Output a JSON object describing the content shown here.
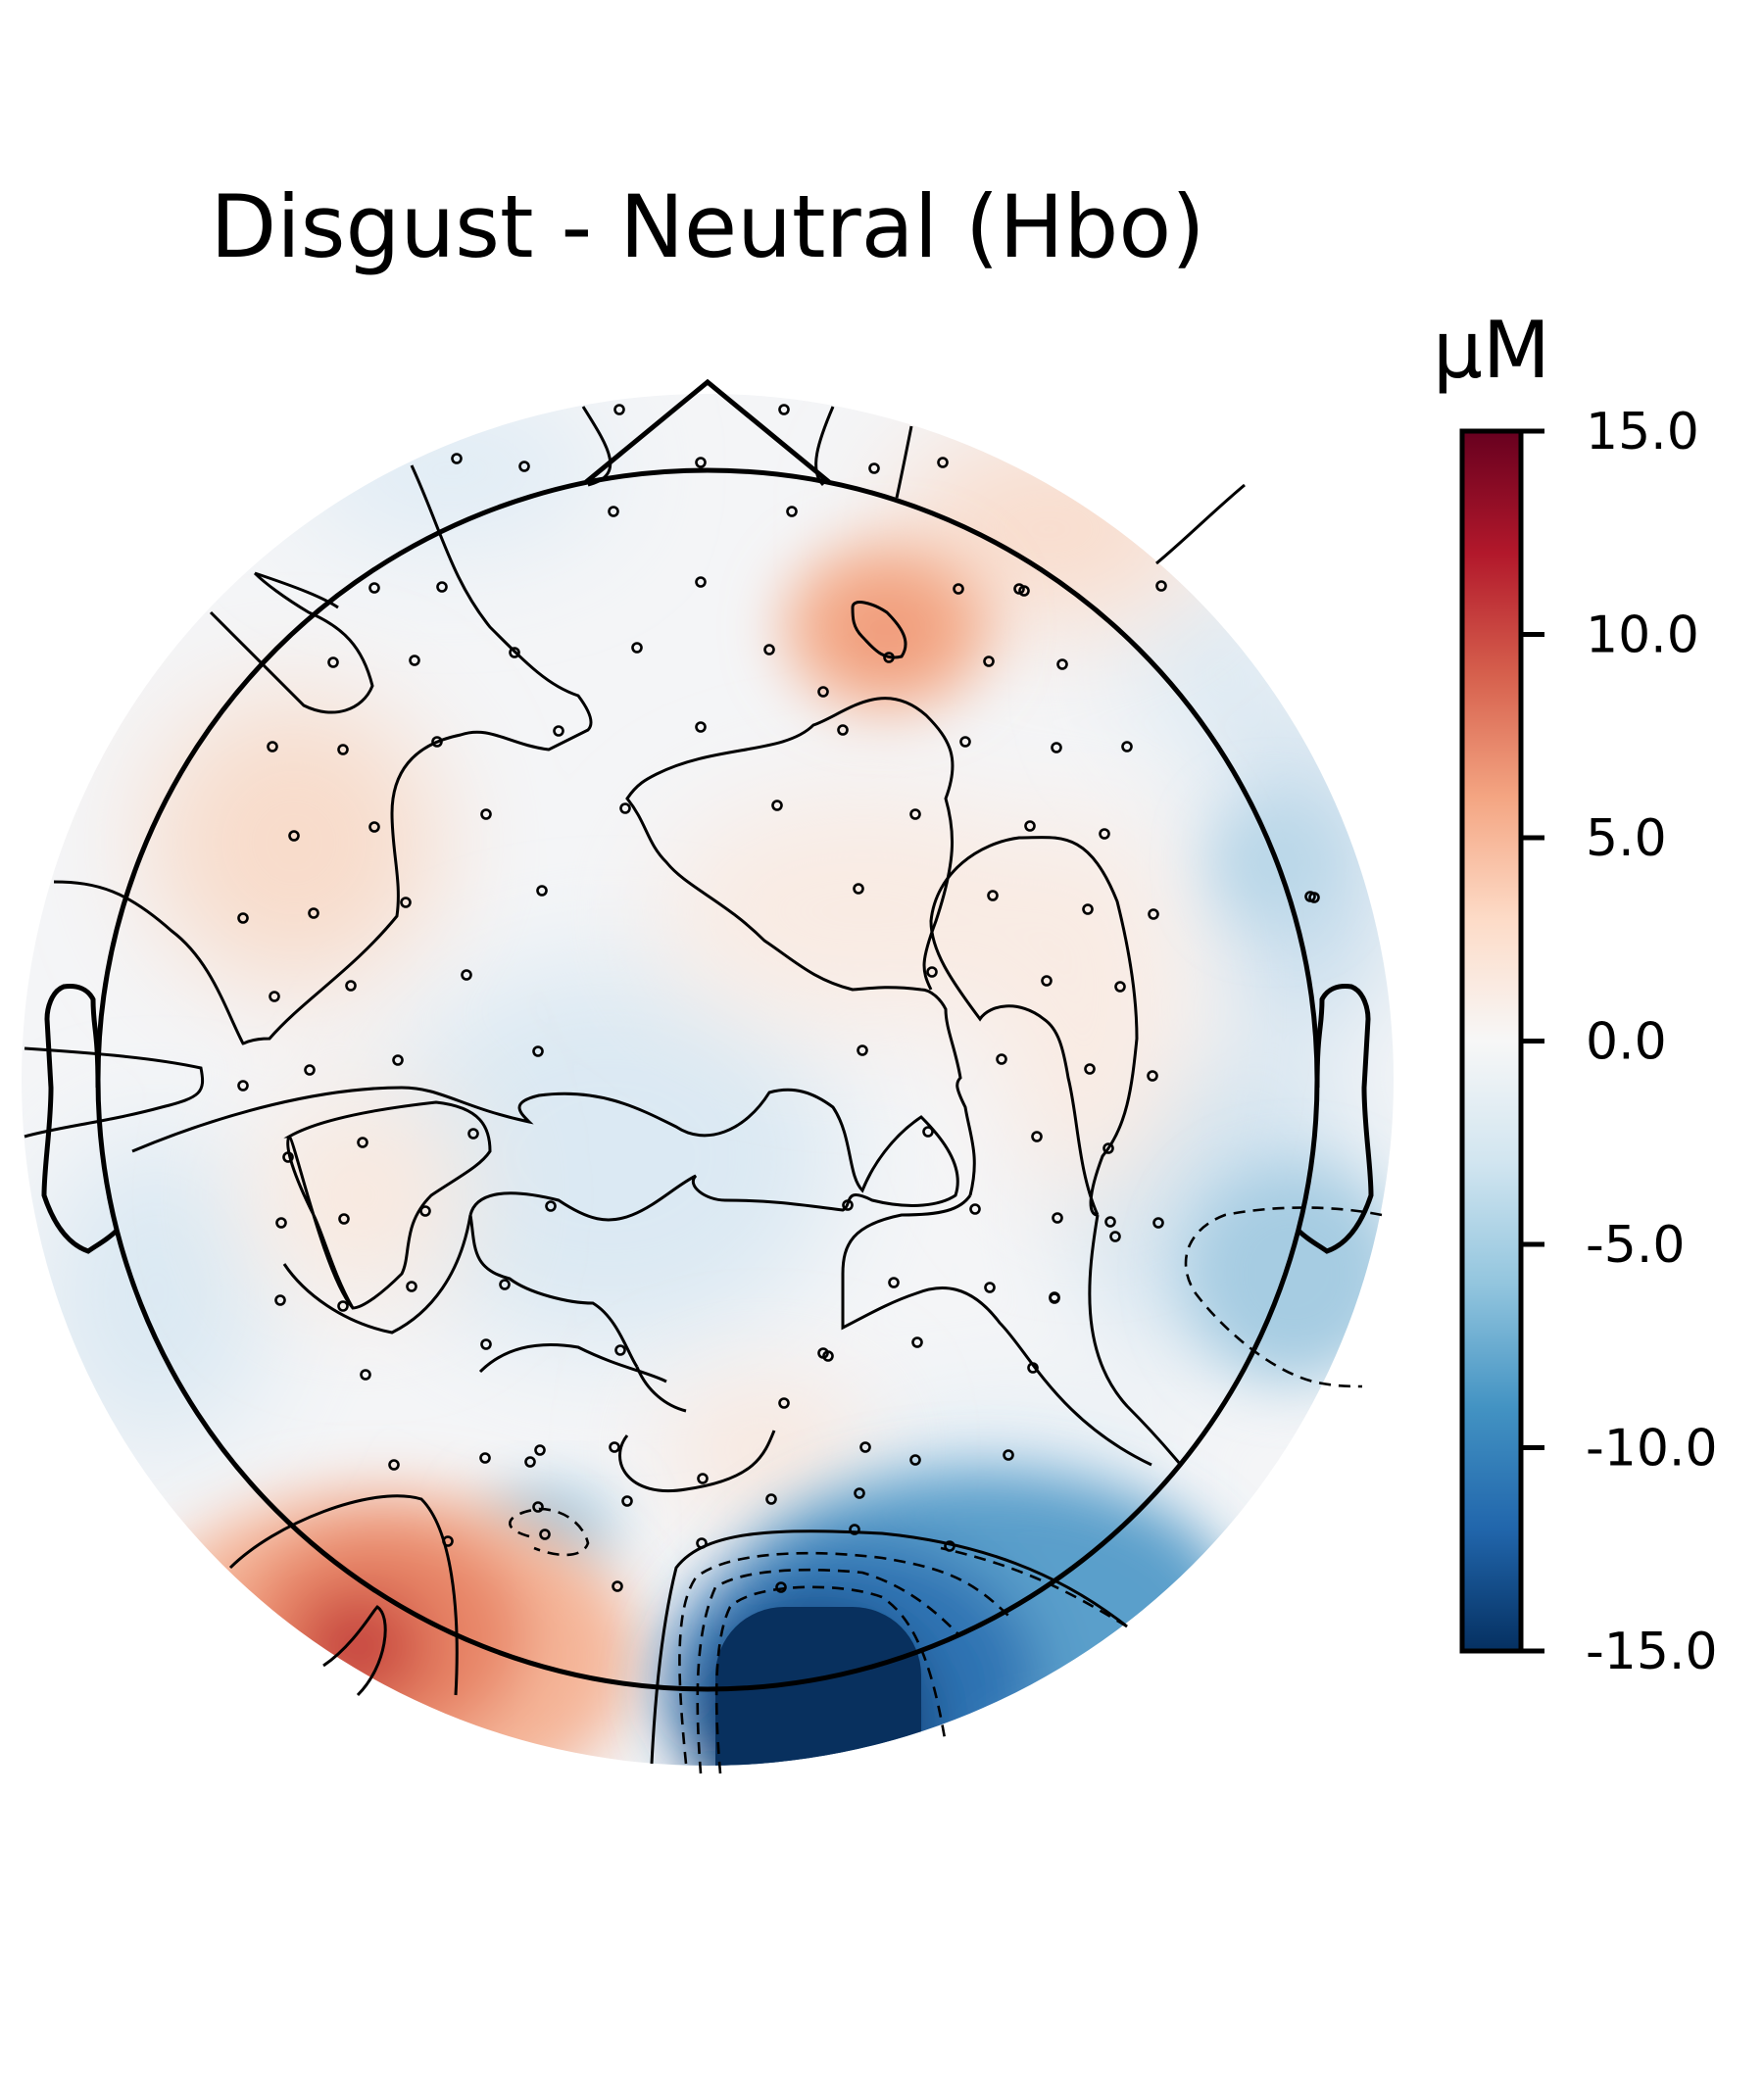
{
  "chart_data": {
    "type": "heatmap",
    "title": "Disgust - Neutral (Hbo)",
    "colorbar": {
      "unit": "μM",
      "min": -15.0,
      "max": 15.0,
      "ticks": [
        "15.0",
        "10.0",
        "5.0",
        "0.0",
        "-5.0",
        "-10.0",
        "-15.0"
      ],
      "tick_values": [
        15,
        10,
        5,
        0,
        -5,
        -10,
        -15
      ],
      "colormap": "RdBu_r",
      "placement": "right"
    },
    "contour_levels": [
      -10,
      -5,
      0,
      5,
      10
    ],
    "hotspots": [
      {
        "region": "bottom-center (occipital)",
        "value": -16.0
      },
      {
        "region": "bottom-left (left occipital)",
        "value": 11.0
      },
      {
        "region": "top-right (right frontal)",
        "value": 6.0
      },
      {
        "region": "right-mid-lower (right temporal)",
        "value": -5.5
      },
      {
        "region": "lower-left small blob",
        "value": -5.0
      },
      {
        "region": "left frontal",
        "value": 2.5
      }
    ],
    "sensor_count": 118
  }
}
